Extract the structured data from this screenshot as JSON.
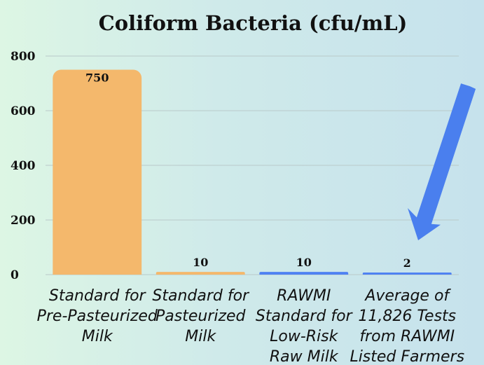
{
  "chart_data": {
    "type": "bar",
    "title": "Coliform Bacteria (cfu/mL)",
    "xlabel": "",
    "ylabel": "",
    "ylim": [
      0,
      800
    ],
    "yticks": [
      0,
      200,
      400,
      600,
      800
    ],
    "grid": true,
    "categories": [
      [
        "Standard for",
        "Pre-Pasteurized",
        "Milk"
      ],
      [
        "Standard for",
        "Pasteurized",
        "Milk"
      ],
      [
        "RAWMI",
        "Standard for",
        "Low-Risk",
        "Raw Milk"
      ],
      [
        "Average of",
        "11,826 Tests",
        "from RAWMI",
        "Listed Farmers"
      ]
    ],
    "values": [
      750,
      10,
      10,
      2
    ],
    "data_labels": [
      "750",
      "10",
      "10",
      "2"
    ],
    "bar_colors": [
      "#f4b86c",
      "#f4b86c",
      "#4f82f2",
      "#4f82f2"
    ],
    "annotation_arrow_color": "#4a7fee"
  }
}
